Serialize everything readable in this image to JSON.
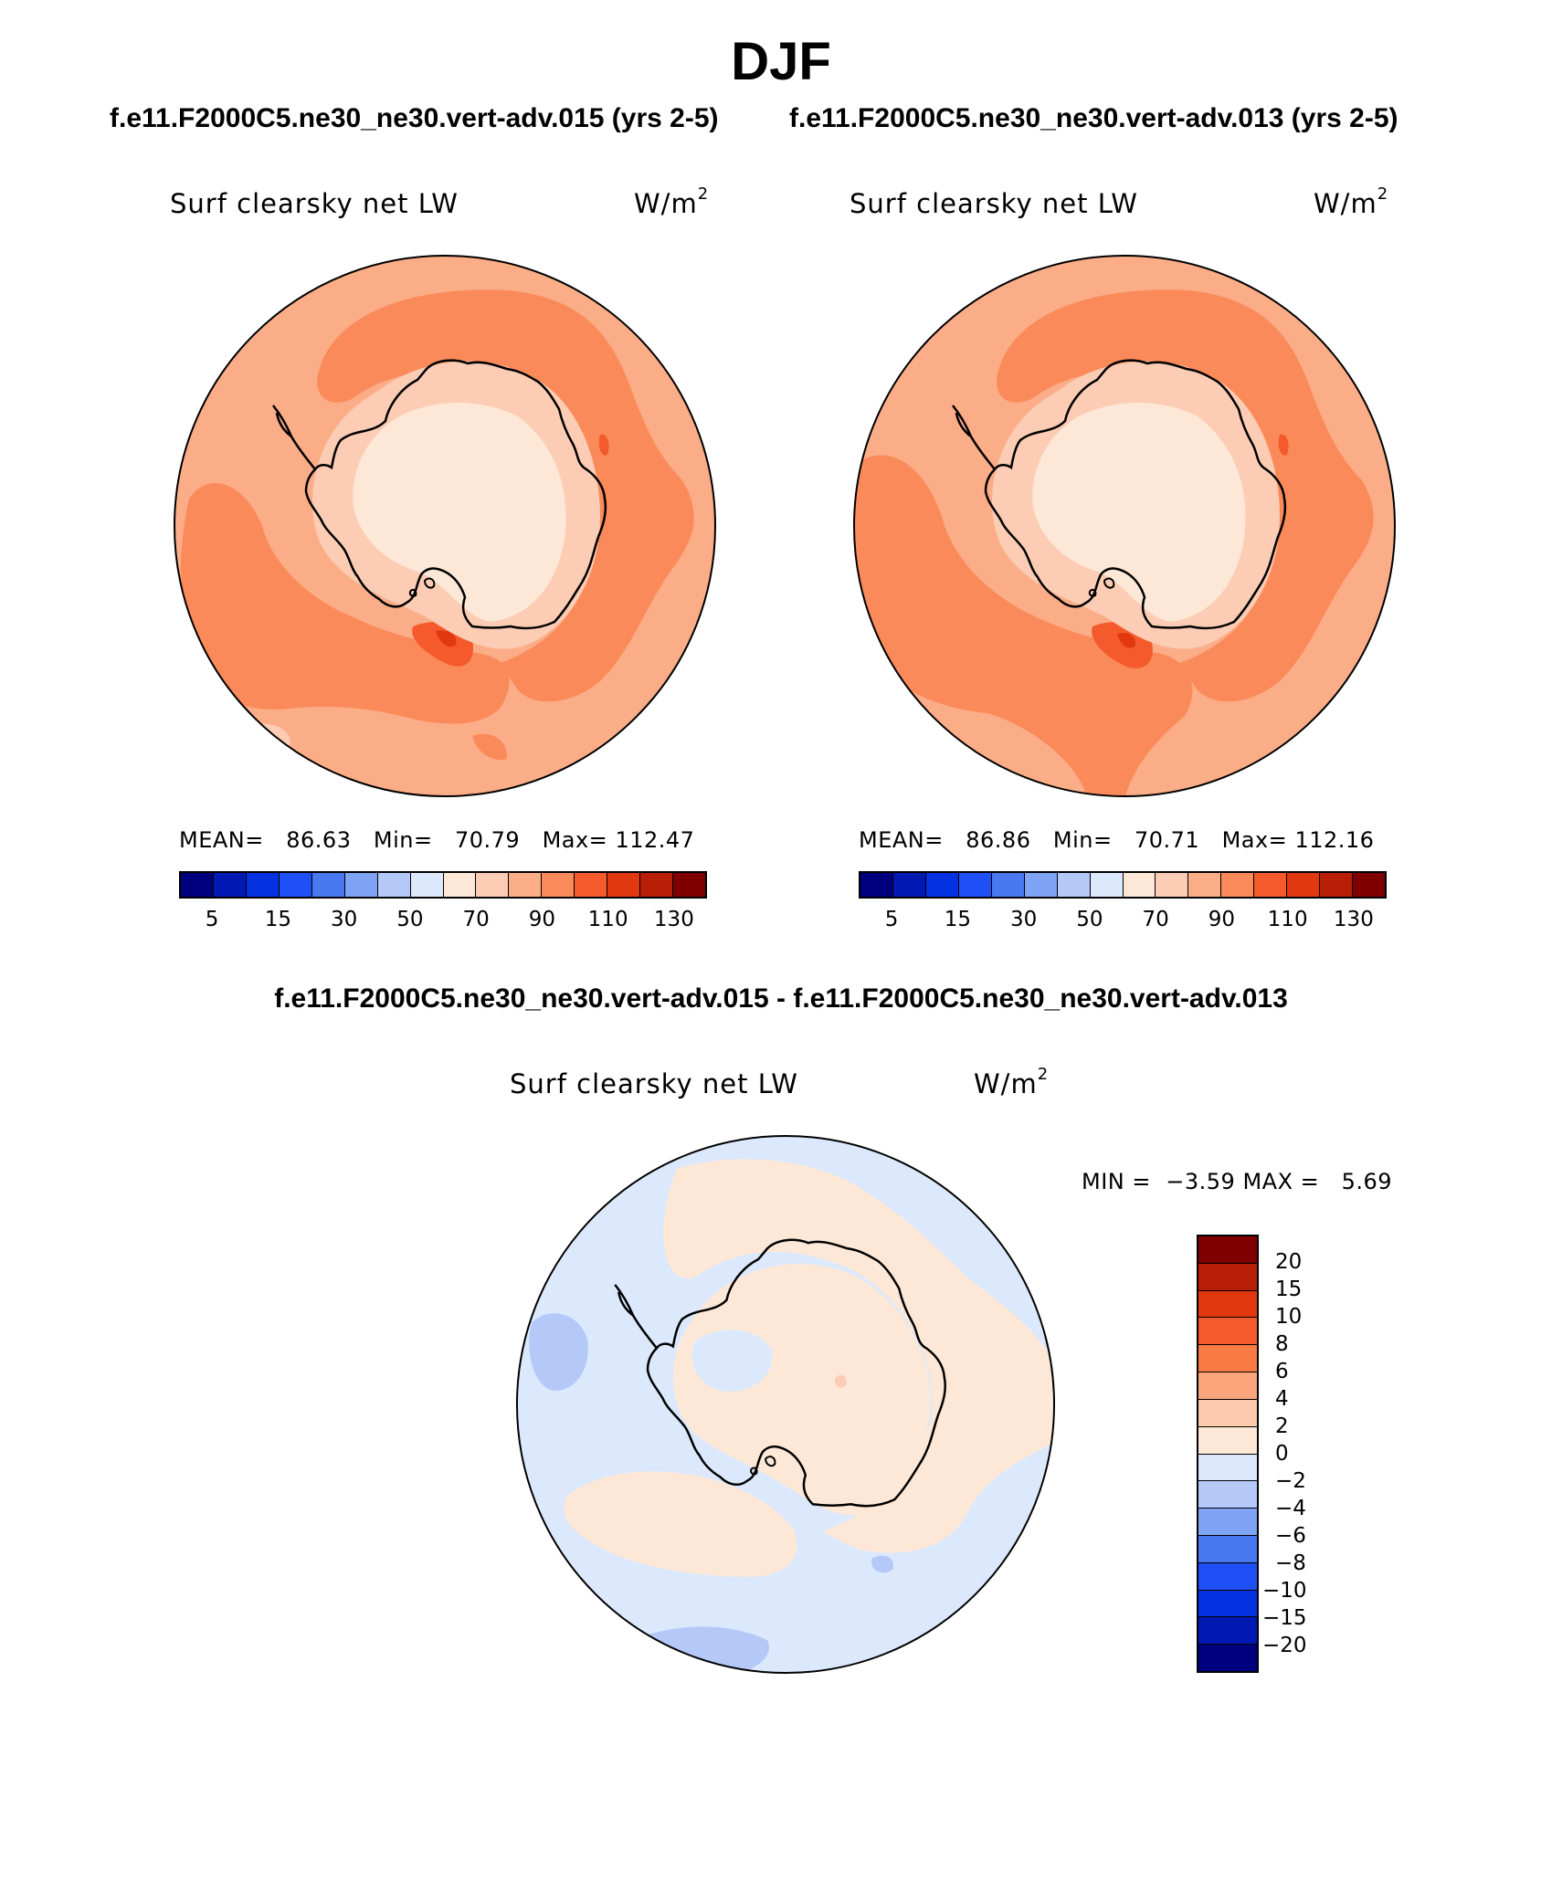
{
  "figure": {
    "season": "DJF",
    "diff_title": "f.e11.F2000C5.ne30_ne30.vert-adv.015 - f.e11.F2000C5.ne30_ne30.vert-adv.013"
  },
  "panels": [
    {
      "case_title": "f.e11.F2000C5.ne30_ne30.vert-adv.015 (yrs 2-5)",
      "variable": "Surf clearsky net LW",
      "units_base": "W/m",
      "units_exp": "2",
      "mean_label": "MEAN=",
      "mean": "86.63",
      "min_label": "Min=",
      "min": "70.79",
      "max_label": "Max=",
      "max": "112.47"
    },
    {
      "case_title": "f.e11.F2000C5.ne30_ne30.vert-adv.013 (yrs 2-5)",
      "variable": "Surf clearsky net LW",
      "units_base": "W/m",
      "units_exp": "2",
      "mean_label": "MEAN=",
      "mean": "86.86",
      "min_label": "Min=",
      "min": "70.71",
      "max_label": "Max=",
      "max": "112.16"
    }
  ],
  "diff_panel": {
    "variable": "Surf clearsky net LW",
    "units_base": "W/m",
    "units_exp": "2",
    "min_label": "MIN =",
    "min": "−3.59",
    "max_label": "MAX =",
    "max": "5.69"
  },
  "abs_colorbar": {
    "colors": [
      "#00007f",
      "#0019b3",
      "#0532e0",
      "#1e50f5",
      "#4a78f0",
      "#7fa3f5",
      "#b4c9f8",
      "#dce9fc",
      "#fde8d8",
      "#fcccb4",
      "#fbad88",
      "#fa8a5a",
      "#f55a2c",
      "#e2380f",
      "#b81e05",
      "#7f0000"
    ],
    "tick_labels": [
      "5",
      "15",
      "30",
      "50",
      "70",
      "90",
      "110",
      "130"
    ]
  },
  "diff_colorbar": {
    "colors_top_to_bottom": [
      "#7f0000",
      "#b81e05",
      "#e2380f",
      "#f55a2c",
      "#fa7a44",
      "#fba57c",
      "#fcc9ad",
      "#fde8d8",
      "#dce9fc",
      "#b4c9f8",
      "#7fa3f5",
      "#4a78f0",
      "#1e50f5",
      "#0532e0",
      "#0019b3",
      "#00007f"
    ],
    "tick_labels": [
      "20",
      "15",
      "10",
      "8",
      "6",
      "4",
      "2",
      "0",
      "−2",
      "−4",
      "−6",
      "−8",
      "−10",
      "−15",
      "−20"
    ]
  },
  "colors": {
    "level_60_70": "#fde8d8",
    "level_70_80": "#fcccb4",
    "level_80_90": "#fbad88",
    "level_90_100": "#fa8a5a",
    "level_100_110": "#f55a2c",
    "level_110_120": "#e2380f",
    "diff_0_2": "#fde8d8",
    "diff_m2_0": "#dce9fc",
    "diff_m4_m2": "#b4c9f8",
    "diff_2_4": "#fcccb4",
    "coastline": "#000000"
  }
}
